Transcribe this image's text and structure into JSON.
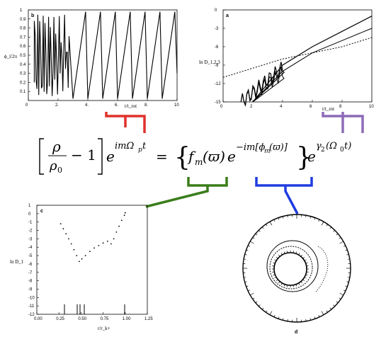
{
  "panel_b": {
    "label": "b",
    "ylabel": "ϕ_l/2π",
    "xlabel": "t/t_rot",
    "xticks": [
      "0",
      "2.",
      "4.",
      "6.",
      "8.",
      "10"
    ],
    "yticks": [
      "0.1",
      "0.2",
      "0.3",
      "0.4",
      "0.5",
      "0.6",
      "0.7",
      "0.8",
      "0.9",
      "1"
    ]
  },
  "panel_a": {
    "label": "a",
    "ylabel": "ln D_1,2,3",
    "xlabel": "t/t_rot",
    "xticks": [
      "0",
      "2",
      "4",
      "6",
      "8",
      "10"
    ],
    "yticks": [
      "0",
      "-3",
      "-6",
      "-9",
      "-12",
      "-15"
    ]
  },
  "panel_c": {
    "label": "c",
    "ylabel": "ln D_1",
    "xlabel": "r/r_k+",
    "xticks": [
      "0.00",
      "0.25",
      "0.50",
      "0.75",
      "1.00",
      "1.25"
    ],
    "yticks": [
      "1",
      "0",
      "-1",
      "-2",
      "-3",
      "-4",
      "-5",
      "-6",
      "-7",
      "-8",
      "-9",
      "-10",
      "-11",
      "-12"
    ]
  },
  "panel_d": {
    "label": "d"
  },
  "equation": {
    "lhs_num": "ρ",
    "lhs_den": "ρ",
    "lhs_den_sub": "0",
    "minus_one": "− 1",
    "exp1": "imΩ",
    "exp1_sub": "p",
    "exp1_t": "t",
    "equals": "=",
    "f": "f",
    "f_sub": "m",
    "arg": "(ϖ)",
    "exp2": "−im[ϕ",
    "exp2_sub": "m",
    "exp2_end": "(ϖ)]",
    "exp3": "γ",
    "exp3_sub": "2",
    "exp3_end": "(Ω",
    "exp3_sub2": "0",
    "exp3_t": "t)",
    "e": "e"
  },
  "colors": {
    "red": "#e0312b",
    "purple": "#8e6bb8",
    "green": "#3a7d1a",
    "blue": "#1f3de0"
  },
  "chart_data": [
    {
      "type": "line",
      "panel": "b",
      "xlim": [
        0,
        10
      ],
      "ylim": [
        0,
        1
      ],
      "x": [
        0.5,
        1.0,
        1.5,
        2.0,
        2.5,
        3.0,
        3.5,
        4.0,
        4.5,
        5.0,
        5.5,
        6.0,
        6.5,
        7.0,
        7.5,
        8.0,
        8.5,
        9.0,
        9.5,
        10.0
      ],
      "y": [
        0.3,
        0.9,
        0.1,
        0.8,
        0.05,
        0.9,
        0.1,
        0.2,
        0.95,
        0.3,
        0.95,
        0.2,
        0.95,
        0.2,
        0.95,
        0.2,
        0.95,
        0.2,
        0.95,
        0.3
      ]
    },
    {
      "type": "line",
      "panel": "a",
      "xlim": [
        0,
        10
      ],
      "ylim": [
        -15,
        0
      ],
      "series": [
        {
          "x": [
            2,
            4,
            6,
            8,
            10
          ],
          "y": [
            -15,
            -9,
            -6,
            -3.5,
            -1
          ]
        },
        {
          "x": [
            2,
            4,
            6,
            8,
            10
          ],
          "y": [
            -15,
            -10,
            -7,
            -5,
            -3
          ]
        },
        {
          "x": [
            0,
            2,
            4,
            6,
            8,
            10
          ],
          "y": [
            -11,
            -9.5,
            -8,
            -7,
            -6,
            -4.5
          ]
        }
      ]
    },
    {
      "type": "scatter",
      "panel": "c",
      "xlim": [
        0,
        1.25
      ],
      "ylim": [
        -12,
        1
      ],
      "x": [
        0.27,
        0.3,
        0.33,
        0.36,
        0.39,
        0.42,
        0.45,
        0.48,
        0.51,
        0.55,
        0.6,
        0.65,
        0.7,
        0.75,
        0.8,
        0.84,
        0.87,
        0.9,
        0.93,
        0.96,
        0.99,
        1.0
      ],
      "y": [
        -1.2,
        -1.8,
        -2.4,
        -3.0,
        -3.6,
        -4.3,
        -5.0,
        -5.7,
        -5.4,
        -5.0,
        -4.5,
        -4.1,
        -3.8,
        -3.5,
        -3.3,
        -3.6,
        -3.0,
        -2.2,
        -1.5,
        -0.8,
        -0.2,
        0.1
      ]
    }
  ]
}
